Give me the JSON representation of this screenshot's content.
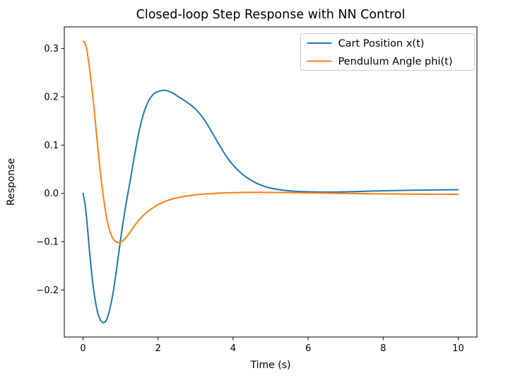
{
  "chart_data": {
    "type": "line",
    "title": "Closed-loop Step Response with NN Control",
    "xlabel": "Time (s)",
    "ylabel": "Response",
    "xlim": [
      -0.5,
      10.5
    ],
    "ylim": [
      -0.2975,
      0.345
    ],
    "x_ticks": [
      0,
      2,
      4,
      6,
      8,
      10
    ],
    "x_tick_labels": [
      "0",
      "2",
      "4",
      "6",
      "8",
      "10"
    ],
    "y_ticks": [
      -0.2,
      -0.1,
      0.0,
      0.1,
      0.2,
      0.3
    ],
    "y_tick_labels": [
      "−0.2",
      "−0.1",
      "0.0",
      "0.1",
      "0.2",
      "0.3"
    ],
    "grid": false,
    "legend": {
      "position": "upper right",
      "entries": [
        "Cart Position x(t)",
        "Pendulum Angle phi(t)"
      ]
    },
    "series": [
      {
        "name": "Cart Position x(t)",
        "color": "#1f77b4",
        "points": [
          [
            0.0,
            0.0
          ],
          [
            0.05,
            -0.02
          ],
          [
            0.1,
            -0.055
          ],
          [
            0.15,
            -0.1
          ],
          [
            0.2,
            -0.143
          ],
          [
            0.25,
            -0.18
          ],
          [
            0.3,
            -0.21
          ],
          [
            0.35,
            -0.233
          ],
          [
            0.4,
            -0.25
          ],
          [
            0.45,
            -0.261
          ],
          [
            0.5,
            -0.2665
          ],
          [
            0.55,
            -0.268
          ],
          [
            0.6,
            -0.2655
          ],
          [
            0.65,
            -0.2575
          ],
          [
            0.7,
            -0.244
          ],
          [
            0.75,
            -0.227
          ],
          [
            0.8,
            -0.206
          ],
          [
            0.85,
            -0.181
          ],
          [
            0.9,
            -0.153
          ],
          [
            0.95,
            -0.124
          ],
          [
            1.0,
            -0.095
          ],
          [
            1.05,
            -0.068
          ],
          [
            1.1,
            -0.043
          ],
          [
            1.15,
            -0.02
          ],
          [
            1.2,
            0.002
          ],
          [
            1.25,
            0.023
          ],
          [
            1.3,
            0.046
          ],
          [
            1.35,
            0.069
          ],
          [
            1.4,
            0.091
          ],
          [
            1.45,
            0.112
          ],
          [
            1.5,
            0.131
          ],
          [
            1.55,
            0.148
          ],
          [
            1.6,
            0.162
          ],
          [
            1.65,
            0.174
          ],
          [
            1.7,
            0.184
          ],
          [
            1.75,
            0.1925
          ],
          [
            1.8,
            0.1985
          ],
          [
            1.85,
            0.2035
          ],
          [
            1.9,
            0.2075
          ],
          [
            1.95,
            0.2095
          ],
          [
            2.0,
            0.211
          ],
          [
            2.1,
            0.2135
          ],
          [
            2.2,
            0.2135
          ],
          [
            2.3,
            0.211
          ],
          [
            2.4,
            0.2075
          ],
          [
            2.5,
            0.2025
          ],
          [
            2.6,
            0.1975
          ],
          [
            2.7,
            0.1925
          ],
          [
            2.8,
            0.187
          ],
          [
            2.9,
            0.1815
          ],
          [
            3.0,
            0.1745
          ],
          [
            3.1,
            0.166
          ],
          [
            3.2,
            0.156
          ],
          [
            3.3,
            0.1445
          ],
          [
            3.4,
            0.1315
          ],
          [
            3.5,
            0.118
          ],
          [
            3.6,
            0.1045
          ],
          [
            3.7,
            0.0915
          ],
          [
            3.8,
            0.079
          ],
          [
            3.9,
            0.068
          ],
          [
            4.0,
            0.0585
          ],
          [
            4.1,
            0.05
          ],
          [
            4.2,
            0.043
          ],
          [
            4.3,
            0.0365
          ],
          [
            4.4,
            0.031
          ],
          [
            4.5,
            0.0265
          ],
          [
            4.6,
            0.022
          ],
          [
            4.7,
            0.0185
          ],
          [
            4.8,
            0.0155
          ],
          [
            4.9,
            0.013
          ],
          [
            5.0,
            0.011
          ],
          [
            5.2,
            0.008
          ],
          [
            5.4,
            0.006
          ],
          [
            5.6,
            0.0047
          ],
          [
            5.8,
            0.0038
          ],
          [
            6.0,
            0.0032
          ],
          [
            6.25,
            0.0028
          ],
          [
            6.5,
            0.0027
          ],
          [
            6.75,
            0.0028
          ],
          [
            7.0,
            0.0032
          ],
          [
            7.25,
            0.0037
          ],
          [
            7.5,
            0.0043
          ],
          [
            7.75,
            0.0049
          ],
          [
            8.0,
            0.0054
          ],
          [
            8.25,
            0.0058
          ],
          [
            8.5,
            0.0062
          ],
          [
            8.75,
            0.0065
          ],
          [
            9.0,
            0.0068
          ],
          [
            9.25,
            0.0071
          ],
          [
            9.5,
            0.0073
          ],
          [
            9.75,
            0.0075
          ],
          [
            10.0,
            0.0076
          ]
        ]
      },
      {
        "name": "Pendulum Angle phi(t)",
        "color": "#ff7f0e",
        "points": [
          [
            0.0,
            0.315
          ],
          [
            0.05,
            0.3125
          ],
          [
            0.1,
            0.298
          ],
          [
            0.15,
            0.272
          ],
          [
            0.2,
            0.242
          ],
          [
            0.25,
            0.208
          ],
          [
            0.3,
            0.17
          ],
          [
            0.35,
            0.13
          ],
          [
            0.4,
            0.09
          ],
          [
            0.45,
            0.052
          ],
          [
            0.5,
            0.018
          ],
          [
            0.55,
            -0.012
          ],
          [
            0.6,
            -0.038
          ],
          [
            0.65,
            -0.059
          ],
          [
            0.7,
            -0.075
          ],
          [
            0.75,
            -0.086
          ],
          [
            0.8,
            -0.094
          ],
          [
            0.85,
            -0.099
          ],
          [
            0.9,
            -0.101
          ],
          [
            0.95,
            -0.102
          ],
          [
            1.0,
            -0.101
          ],
          [
            1.05,
            -0.099
          ],
          [
            1.1,
            -0.095
          ],
          [
            1.15,
            -0.091
          ],
          [
            1.2,
            -0.086
          ],
          [
            1.3,
            -0.075
          ],
          [
            1.4,
            -0.064
          ],
          [
            1.5,
            -0.054
          ],
          [
            1.6,
            -0.046
          ],
          [
            1.7,
            -0.039
          ],
          [
            1.8,
            -0.033
          ],
          [
            1.9,
            -0.028
          ],
          [
            2.0,
            -0.023
          ],
          [
            2.2,
            -0.016
          ],
          [
            2.4,
            -0.011
          ],
          [
            2.6,
            -0.0075
          ],
          [
            2.8,
            -0.005
          ],
          [
            3.0,
            -0.003
          ],
          [
            3.2,
            -0.0015
          ],
          [
            3.4,
            -0.0005
          ],
          [
            3.6,
            0.0005
          ],
          [
            3.8,
            0.001
          ],
          [
            4.0,
            0.0015
          ],
          [
            4.25,
            0.002
          ],
          [
            4.5,
            0.0022
          ],
          [
            4.75,
            0.0022
          ],
          [
            5.0,
            0.002
          ],
          [
            5.5,
            0.0016
          ],
          [
            6.0,
            0.001
          ],
          [
            6.5,
            0.0005
          ],
          [
            7.0,
            0.0
          ],
          [
            7.5,
            -0.0005
          ],
          [
            8.0,
            -0.001
          ],
          [
            8.5,
            -0.0014
          ],
          [
            9.0,
            -0.0017
          ],
          [
            9.5,
            -0.0019
          ],
          [
            10.0,
            -0.002
          ]
        ]
      }
    ]
  },
  "colors": {
    "background": "#ffffff",
    "axis": "#000000",
    "legend_border": "#cccccc",
    "legend_background": "#ffffff"
  }
}
